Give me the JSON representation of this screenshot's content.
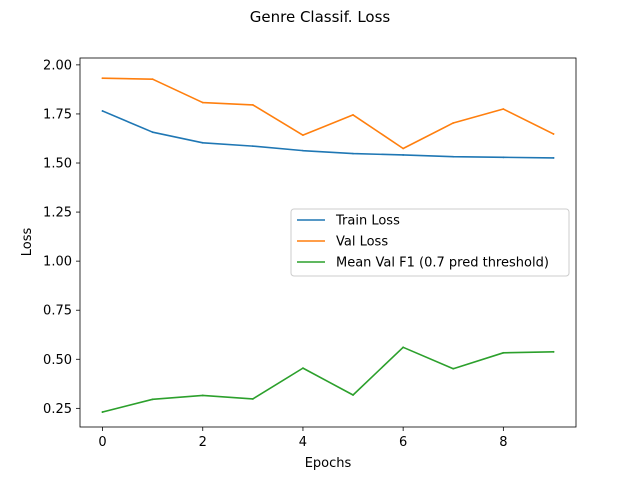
{
  "chart_data": {
    "type": "line",
    "title": "Genre Classif. Loss",
    "xlabel": "Epochs",
    "ylabel": "Loss",
    "xlim": [
      -0.45,
      9.45
    ],
    "ylim": [
      0.155,
      2.035
    ],
    "xticks": [
      0,
      2,
      4,
      6,
      8
    ],
    "xtick_labels": [
      "0",
      "2",
      "4",
      "6",
      "8"
    ],
    "yticks": [
      0.25,
      0.5,
      0.75,
      1.0,
      1.25,
      1.5,
      1.75,
      2.0
    ],
    "ytick_labels": [
      "0.25",
      "0.50",
      "0.75",
      "1.00",
      "1.25",
      "1.50",
      "1.75",
      "2.00"
    ],
    "grid": false,
    "legend_position": "center-right",
    "x": [
      0,
      1,
      2,
      3,
      4,
      5,
      6,
      7,
      8,
      9
    ],
    "series": [
      {
        "name": "Train Loss",
        "color": "#1f77b4",
        "values": [
          1.765,
          1.657,
          1.603,
          1.586,
          1.563,
          1.548,
          1.541,
          1.532,
          1.529,
          1.526
        ]
      },
      {
        "name": "Val Loss",
        "color": "#ff7f0e",
        "values": [
          1.932,
          1.927,
          1.808,
          1.796,
          1.642,
          1.745,
          1.574,
          1.704,
          1.775,
          1.648
        ]
      },
      {
        "name": "Mean Val F1 (0.7 pred threshold)",
        "color": "#2ca02c",
        "values": [
          0.231,
          0.296,
          0.316,
          0.298,
          0.455,
          0.318,
          0.561,
          0.452,
          0.533,
          0.538
        ]
      }
    ]
  }
}
